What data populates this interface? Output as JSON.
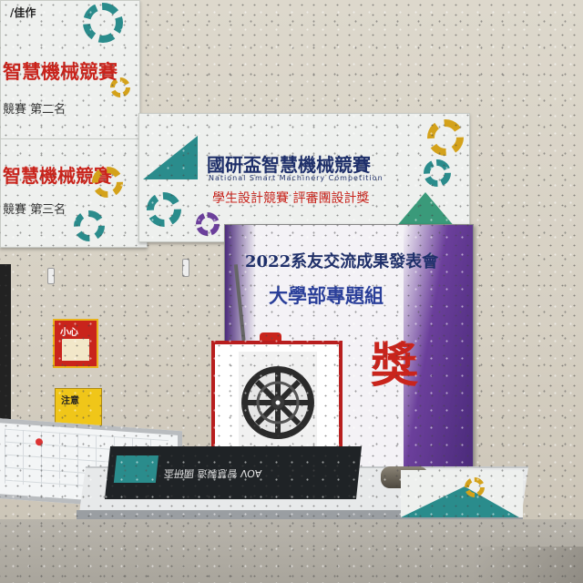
{
  "banner_back": {
    "title": "智慧機械競賽",
    "prize_top": "/佳作",
    "subtitle_top": "機械競賽",
    "prize_mid": "競賽 第二名",
    "prize_low": "競賽 第三名"
  },
  "banner_main": {
    "title": "國研盃智慧機械競賽",
    "subtitle_en": "National Smart Machinery Competition",
    "award": "學生設計競賽 評審團設計獎"
  },
  "poster": {
    "line1": "2022系友交流成果發表會",
    "line2": "大學部專題組",
    "prize_char": "獎"
  },
  "signs": {
    "red_sign": "小心",
    "yellow_sign": "注意"
  },
  "mat_text": "AOV 智慧製造 國研盃",
  "colors": {
    "gear_teal": "#2a8c8c",
    "gear_gold": "#d4a21a",
    "gear_navy": "#2a3f7a",
    "title_red": "#c9241c",
    "poster_purple": "#6b3f9b"
  }
}
